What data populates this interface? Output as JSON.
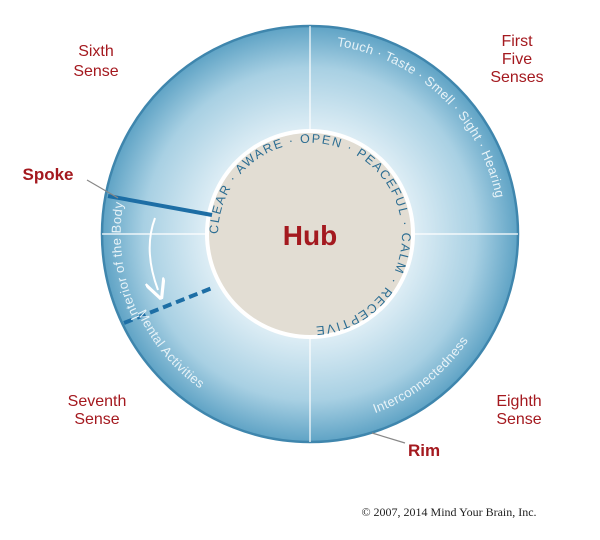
{
  "labels": {
    "sixth_sense_line1": "Sixth",
    "sixth_sense_line2": "Sense",
    "first_five_line1": "First",
    "first_five_line2": "Five",
    "first_five_line3": "Senses",
    "seventh_sense_line1": "Seventh",
    "seventh_sense_line2": "Sense",
    "eighth_sense_line1": "Eighth",
    "eighth_sense_line2": "Sense",
    "spoke": "Spoke",
    "rim": "Rim",
    "hub": "Hub"
  },
  "rim_text": {
    "top_left": "Interior of the Body",
    "top_right": "Touch · Taste · Smell · Sight · Hearing",
    "bottom_left": "Mental Activities",
    "bottom_right": "Interconnectedness"
  },
  "hub_ring_text": "CLEAR · AWARE · OPEN · PEACEFUL · CALM · RECEPTIVE",
  "copyright": "© 2007, 2014 Mind Your Brain, Inc.",
  "colors": {
    "label_red": "#a4191f",
    "wheel_blue": "#6aaecd",
    "hub_beige": "#e2ddd3",
    "spoke_blue": "#1d6ea5"
  }
}
